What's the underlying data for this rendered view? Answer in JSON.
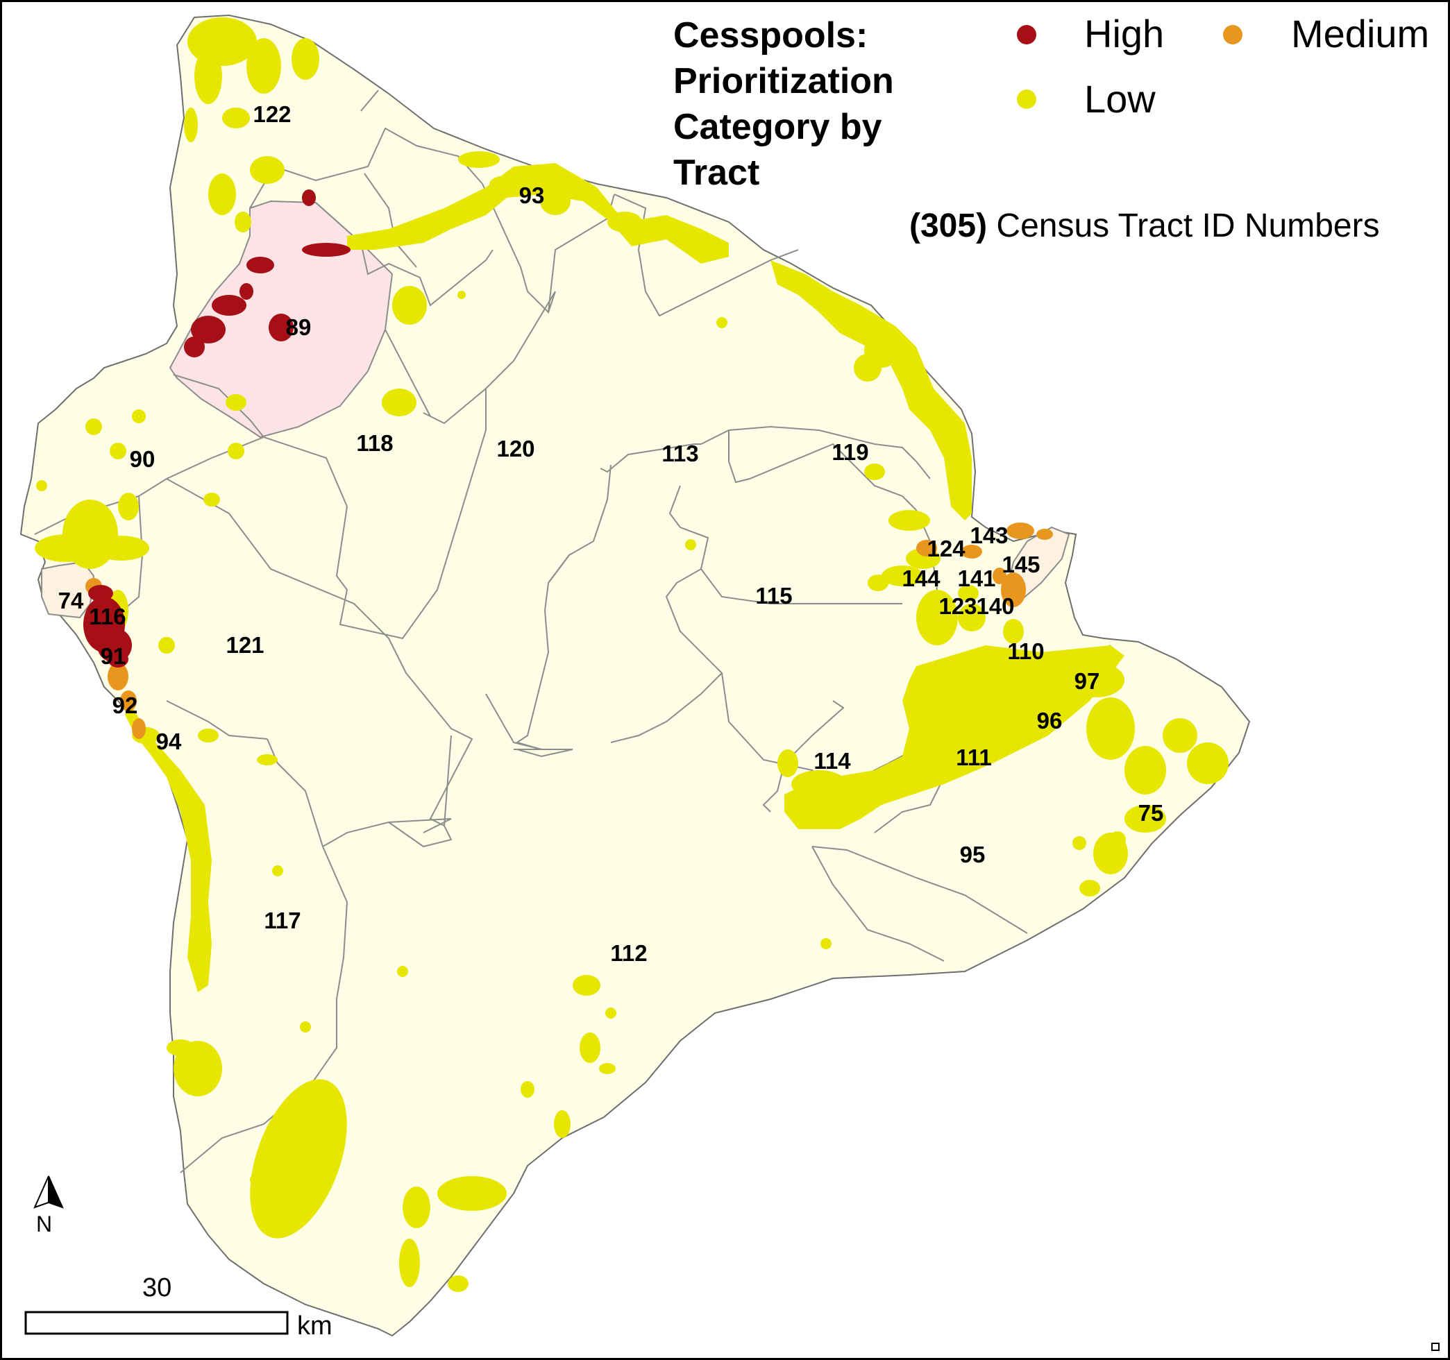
{
  "legend": {
    "title_lines": [
      "Cesspools:",
      "Prioritization",
      "Category by",
      "Tract"
    ],
    "categories": [
      {
        "label": "High",
        "color": "#a50f15"
      },
      {
        "label": "Medium",
        "color": "#e8961e"
      },
      {
        "label": "Low",
        "color": "#e6e600"
      }
    ],
    "census_note_id": "(305)",
    "census_note_text": "Census Tract ID Numbers"
  },
  "map_colors": {
    "land_fill": "#fefee6",
    "tract_border": "#8c8c8c",
    "high_tract_fill": "#fce4e6",
    "medium_tract_fill": "#fdf1e0"
  },
  "tracts": [
    {
      "id": "122"
    },
    {
      "id": "93"
    },
    {
      "id": "89"
    },
    {
      "id": "118"
    },
    {
      "id": "120"
    },
    {
      "id": "113"
    },
    {
      "id": "119"
    },
    {
      "id": "90"
    },
    {
      "id": "143"
    },
    {
      "id": "124"
    },
    {
      "id": "145"
    },
    {
      "id": "144"
    },
    {
      "id": "141"
    },
    {
      "id": "74"
    },
    {
      "id": "115"
    },
    {
      "id": "123"
    },
    {
      "id": "140"
    },
    {
      "id": "116"
    },
    {
      "id": "121"
    },
    {
      "id": "110"
    },
    {
      "id": "91"
    },
    {
      "id": "97"
    },
    {
      "id": "92"
    },
    {
      "id": "96"
    },
    {
      "id": "94"
    },
    {
      "id": "114"
    },
    {
      "id": "111"
    },
    {
      "id": "75"
    },
    {
      "id": "95"
    },
    {
      "id": "117"
    },
    {
      "id": "112"
    }
  ],
  "north_arrow": {
    "label": "N"
  },
  "scale_bar": {
    "value": "30",
    "unit": "km"
  }
}
